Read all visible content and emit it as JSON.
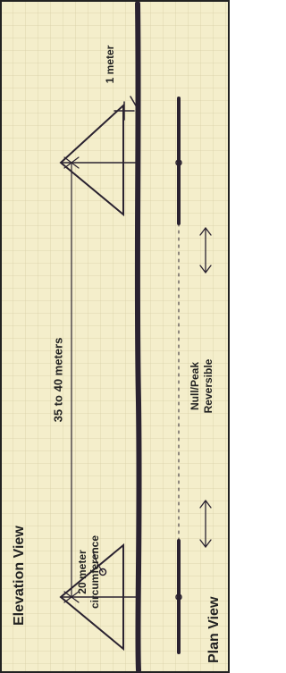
{
  "labels": {
    "elevation_view": "Elevation View",
    "plan_view": "Plan View",
    "circumference": [
      "20 meter",
      "circumference"
    ],
    "spacing": "35 to 40 meters",
    "height": "1 meter",
    "pattern": [
      "Null/Peak",
      "Reversible"
    ]
  }
}
